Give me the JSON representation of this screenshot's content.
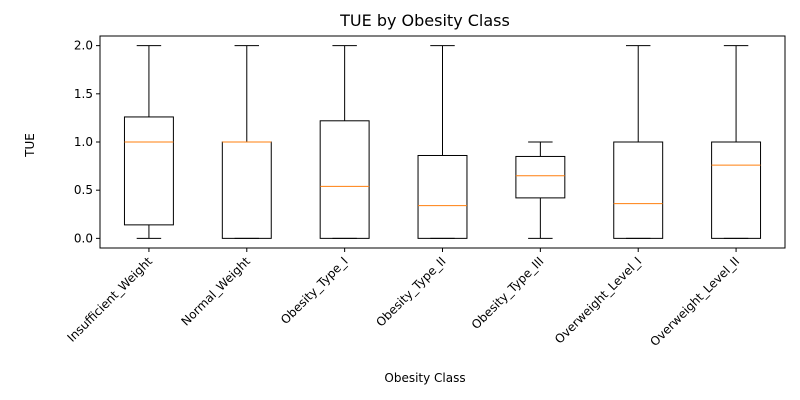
{
  "chart_data": {
    "type": "boxplot",
    "title": "TUE by Obesity Class",
    "xlabel": "Obesity Class",
    "ylabel": "TUE",
    "ylim": [
      -0.1,
      2.1
    ],
    "yticks": [
      "0.0",
      "0.5",
      "1.0",
      "1.5",
      "2.0"
    ],
    "grid": false,
    "categories": [
      "Insufficient_Weight",
      "Normal_Weight",
      "Obesity_Type_I",
      "Obesity_Type_II",
      "Obesity_Type_III",
      "Overweight_Level_I",
      "Overweight_Level_II"
    ],
    "boxes": [
      {
        "whisker_low": 0.0,
        "q1": 0.14,
        "median": 1.0,
        "q3": 1.26,
        "whisker_high": 2.0
      },
      {
        "whisker_low": 0.0,
        "q1": 0.0,
        "median": 1.0,
        "q3": 1.0,
        "whisker_high": 2.0
      },
      {
        "whisker_low": 0.0,
        "q1": 0.0,
        "median": 0.54,
        "q3": 1.22,
        "whisker_high": 2.0
      },
      {
        "whisker_low": 0.0,
        "q1": 0.0,
        "median": 0.34,
        "q3": 0.86,
        "whisker_high": 2.0
      },
      {
        "whisker_low": 0.0,
        "q1": 0.42,
        "median": 0.65,
        "q3": 0.85,
        "whisker_high": 1.0
      },
      {
        "whisker_low": 0.0,
        "q1": 0.0,
        "median": 0.36,
        "q3": 1.0,
        "whisker_high": 2.0
      },
      {
        "whisker_low": 0.0,
        "q1": 0.0,
        "median": 0.76,
        "q3": 1.0,
        "whisker_high": 2.0
      }
    ],
    "colors": {
      "box": "#000000",
      "median": "#ff7f0e"
    }
  }
}
